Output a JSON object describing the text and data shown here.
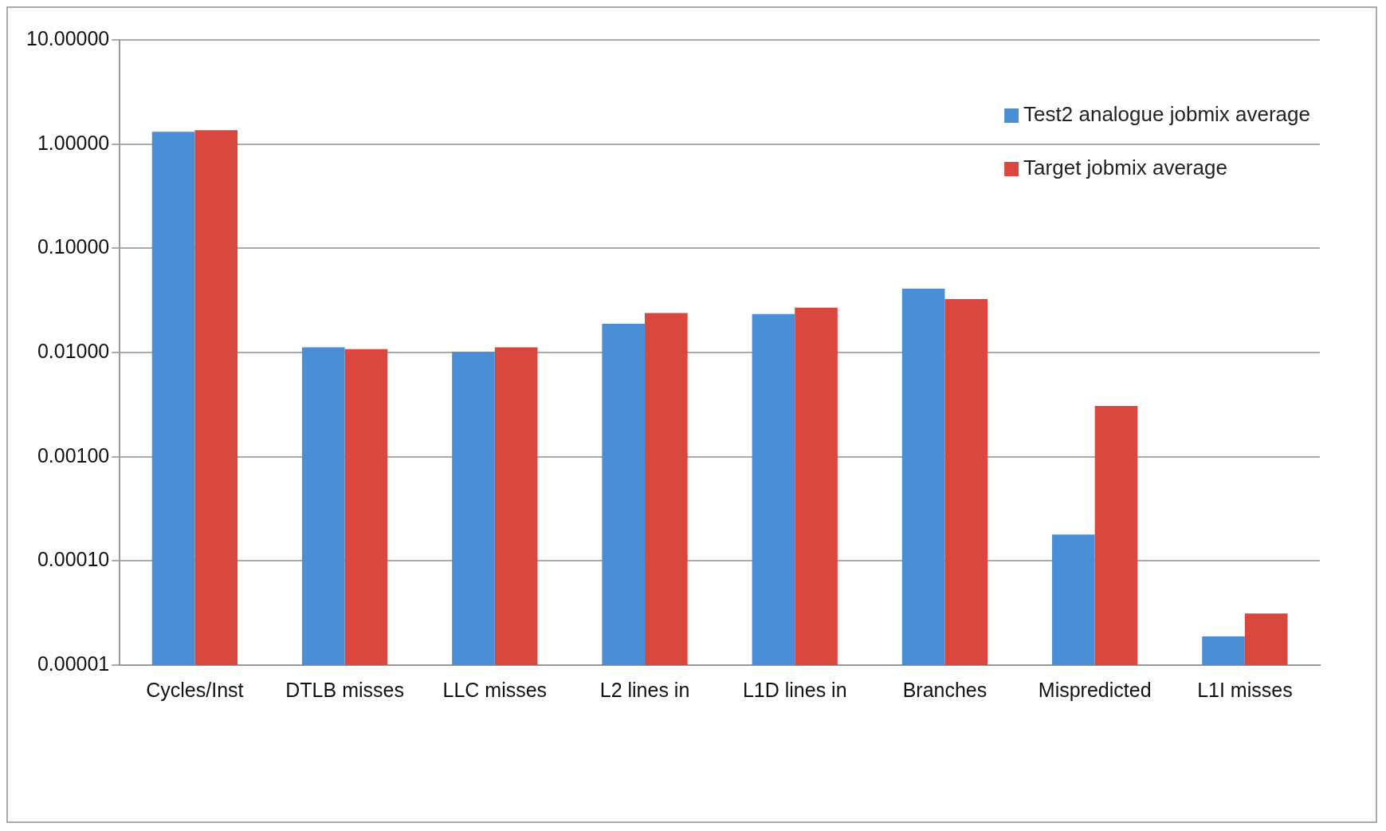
{
  "chart_data": {
    "type": "bar",
    "categories": [
      "Cycles/Inst",
      "DTLB misses",
      "LLC misses",
      "L2 lines in",
      "L1D lines in",
      "Branches",
      "Mispredicted",
      "L1I misses"
    ],
    "series": [
      {
        "name": "Test2 analogue jobmix average",
        "color": "#4a8fd6",
        "values": [
          1.31,
          0.0112,
          0.0102,
          0.0189,
          0.0234,
          0.041,
          0.000179,
          1.89e-05
        ]
      },
      {
        "name": "Target jobmix average",
        "color": "#d9473f",
        "values": [
          1.36,
          0.0108,
          0.0112,
          0.0239,
          0.0269,
          0.0326,
          0.00307,
          3.13e-05
        ]
      }
    ],
    "log": "y",
    "ylim": [
      1e-05,
      10
    ],
    "yticks": [
      {
        "value": 1e-05,
        "label": "0.00001"
      },
      {
        "value": 0.0001,
        "label": "0.00010"
      },
      {
        "value": 0.001,
        "label": "0.00100"
      },
      {
        "value": 0.01,
        "label": "0.01000"
      },
      {
        "value": 0.1,
        "label": "0.10000"
      },
      {
        "value": 1,
        "label": "1.00000"
      },
      {
        "value": 10,
        "label": "10.00000"
      }
    ],
    "grid": "y",
    "legend": "top right"
  }
}
